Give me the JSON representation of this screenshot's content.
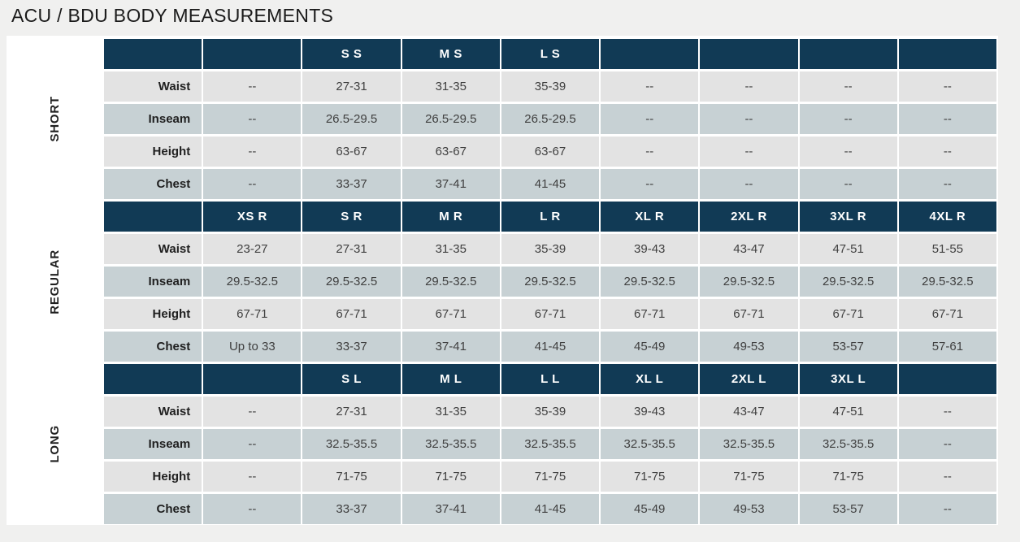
{
  "page": {
    "title": "ACU / BDU BODY MEASUREMENTS"
  },
  "colors": {
    "page_bg": "#f0f0ef",
    "panel_bg": "#ffffff",
    "header_bg": "#113a55",
    "header_text": "#ffffff",
    "row_light": "#e3e3e3",
    "row_shaded": "#c7d1d4",
    "label_text": "#1f1f1f",
    "cell_text": "#404040",
    "title_text": "#1a1a1a"
  },
  "table": {
    "measurement_labels": [
      "Waist",
      "Inseam",
      "Height",
      "Chest"
    ],
    "sections": [
      {
        "label": "SHORT",
        "header": [
          "",
          "",
          "S S",
          "M S",
          "L S",
          "",
          "",
          "",
          ""
        ],
        "rows": [
          {
            "label": "Waist",
            "cells": [
              "--",
              "27-31",
              "31-35",
              "35-39",
              "--",
              "--",
              "--",
              "--"
            ]
          },
          {
            "label": "Inseam",
            "cells": [
              "--",
              "26.5-29.5",
              "26.5-29.5",
              "26.5-29.5",
              "--",
              "--",
              "--",
              "--"
            ]
          },
          {
            "label": "Height",
            "cells": [
              "--",
              "63-67",
              "63-67",
              "63-67",
              "--",
              "--",
              "--",
              "--"
            ]
          },
          {
            "label": "Chest",
            "cells": [
              "--",
              "33-37",
              "37-41",
              "41-45",
              "--",
              "--",
              "--",
              "--"
            ]
          }
        ]
      },
      {
        "label": "REGULAR",
        "header": [
          "",
          "XS R",
          "S R",
          "M R",
          "L R",
          "XL R",
          "2XL R",
          "3XL R",
          "4XL R"
        ],
        "rows": [
          {
            "label": "Waist",
            "cells": [
              "23-27",
              "27-31",
              "31-35",
              "35-39",
              "39-43",
              "43-47",
              "47-51",
              "51-55"
            ]
          },
          {
            "label": "Inseam",
            "cells": [
              "29.5-32.5",
              "29.5-32.5",
              "29.5-32.5",
              "29.5-32.5",
              "29.5-32.5",
              "29.5-32.5",
              "29.5-32.5",
              "29.5-32.5"
            ]
          },
          {
            "label": "Height",
            "cells": [
              "67-71",
              "67-71",
              "67-71",
              "67-71",
              "67-71",
              "67-71",
              "67-71",
              "67-71"
            ]
          },
          {
            "label": "Chest",
            "cells": [
              "Up to 33",
              "33-37",
              "37-41",
              "41-45",
              "45-49",
              "49-53",
              "53-57",
              "57-61"
            ]
          }
        ]
      },
      {
        "label": "LONG",
        "header": [
          "",
          "",
          "S L",
          "M L",
          "L L",
          "XL L",
          "2XL L",
          "3XL L",
          ""
        ],
        "rows": [
          {
            "label": "Waist",
            "cells": [
              "--",
              "27-31",
              "31-35",
              "35-39",
              "39-43",
              "43-47",
              "47-51",
              "--"
            ]
          },
          {
            "label": "Inseam",
            "cells": [
              "--",
              "32.5-35.5",
              "32.5-35.5",
              "32.5-35.5",
              "32.5-35.5",
              "32.5-35.5",
              "32.5-35.5",
              "--"
            ]
          },
          {
            "label": "Height",
            "cells": [
              "--",
              "71-75",
              "71-75",
              "71-75",
              "71-75",
              "71-75",
              "71-75",
              "--"
            ]
          },
          {
            "label": "Chest",
            "cells": [
              "--",
              "33-37",
              "37-41",
              "41-45",
              "45-49",
              "49-53",
              "53-57",
              "--"
            ]
          }
        ]
      }
    ]
  }
}
